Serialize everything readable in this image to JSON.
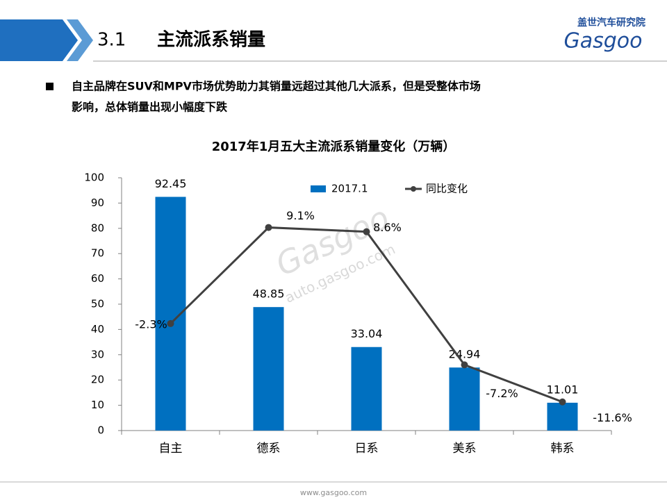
{
  "header": {
    "number": "3.1",
    "title": "主流派系销量",
    "logo_cn": "盖世汽车研究院",
    "logo_en": "Gasgoo"
  },
  "bullet": [
    "自主品牌在SUV和MPV市场优势助力其销量远超过其他几大派系，但是受整体市场",
    "影响，总体销量出现小幅度下跌"
  ],
  "chart_data": {
    "type": "bar",
    "title": "2017年1月五大主流派系销量变化（万辆）",
    "categories": [
      "自主",
      "德系",
      "日系",
      "美系",
      "韩系"
    ],
    "series": [
      {
        "name": "2017.1",
        "type": "bar",
        "color": "#0070c0",
        "values": [
          92.45,
          48.85,
          33.04,
          24.94,
          11.01
        ]
      },
      {
        "name": "同比变化",
        "type": "line",
        "axis": "y2",
        "color": "#404040",
        "values": [
          -2.3,
          9.1,
          8.6,
          -7.2,
          -11.6
        ],
        "value_labels": [
          "-2.3%",
          "9.1%",
          "8.6%",
          "-7.2%",
          "-11.6%"
        ]
      }
    ],
    "ylim": [
      0,
      100
    ],
    "yticks": [
      0,
      10,
      20,
      30,
      40,
      50,
      60,
      70,
      80,
      90,
      100
    ],
    "y2lim": [
      -15,
      15
    ],
    "grid": false,
    "legend": "top"
  },
  "watermark": {
    "brand": "Gasgoo",
    "url": "auto.gasgoo.com"
  },
  "footer": "www.gasgoo.com"
}
